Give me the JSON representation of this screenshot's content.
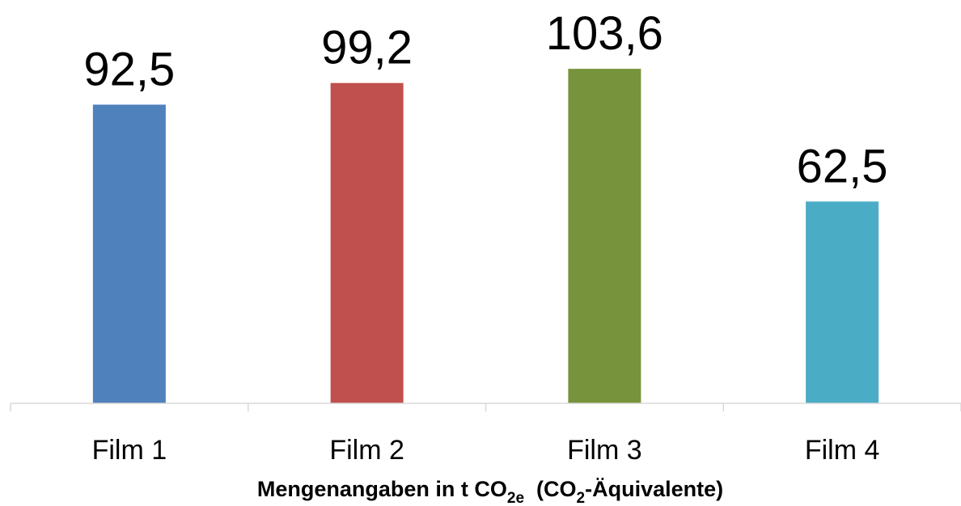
{
  "chart_data": {
    "type": "bar",
    "categories": [
      "Film 1",
      "Film 2",
      "Film 3",
      "Film 4"
    ],
    "values": [
      92.5,
      99.2,
      103.6,
      62.5
    ],
    "value_labels": [
      "92,5",
      "99,2",
      "103,6",
      "62,5"
    ],
    "colors": [
      "#4f81bd",
      "#c0504d",
      "#77933c",
      "#4bacc6"
    ],
    "title": "",
    "xlabel_parts": {
      "before": "Mengenangaben in t CO",
      "sub1": "2e",
      "middle": "  (CO",
      "sub2": "2",
      "after": "-Äquivalente)"
    },
    "ylabel": "",
    "ylim": [
      0,
      110
    ],
    "grid": false,
    "legend": "none"
  }
}
